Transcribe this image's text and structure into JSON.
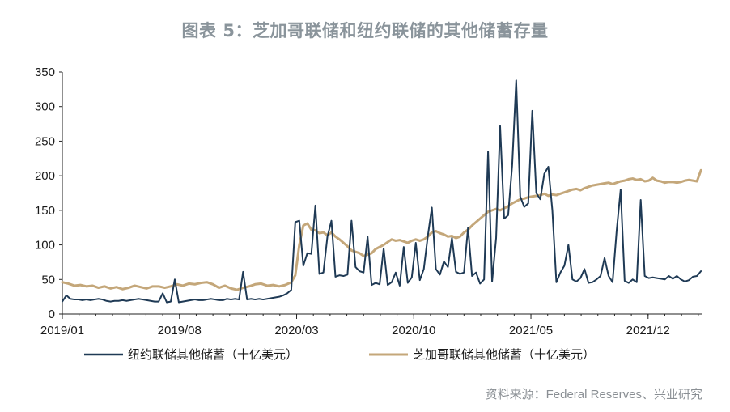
{
  "chart_data": {
    "type": "line",
    "title": "图表 5：芝加哥联储和纽约联储的其他储蓄存量",
    "source": "资料来源：Federal Reserves、兴业研究",
    "xlabel": "",
    "ylabel": "",
    "ylim": [
      0,
      350
    ],
    "yticks": [
      0,
      50,
      100,
      150,
      200,
      250,
      300,
      350
    ],
    "xtick_labels": [
      "2019/01",
      "2019/08",
      "2020/03",
      "2020/10",
      "2021/05",
      "2021/12"
    ],
    "x_start": "2019-01",
    "x_end": "2022-03",
    "grid": false,
    "legend_position": "bottom",
    "colors": {
      "ny": "#1f3a55",
      "chicago": "#c4a77a",
      "axis": "#222222",
      "title": "#8a949b",
      "source": "#8a8f94"
    },
    "series": [
      {
        "name": "纽约联储其他储蓄（十亿美元）",
        "color": "#1f3a55",
        "points": [
          [
            2019.0,
            18
          ],
          [
            2019.02,
            27
          ],
          [
            2019.04,
            22
          ],
          [
            2019.06,
            21
          ],
          [
            2019.08,
            21
          ],
          [
            2019.1,
            20
          ],
          [
            2019.12,
            21
          ],
          [
            2019.14,
            20
          ],
          [
            2019.16,
            21
          ],
          [
            2019.18,
            22
          ],
          [
            2019.2,
            21
          ],
          [
            2019.22,
            19
          ],
          [
            2019.24,
            18
          ],
          [
            2019.26,
            19
          ],
          [
            2019.28,
            19
          ],
          [
            2019.3,
            20
          ],
          [
            2019.32,
            19
          ],
          [
            2019.34,
            20
          ],
          [
            2019.36,
            21
          ],
          [
            2019.38,
            22
          ],
          [
            2019.4,
            21
          ],
          [
            2019.42,
            20
          ],
          [
            2019.44,
            19
          ],
          [
            2019.46,
            18
          ],
          [
            2019.48,
            18
          ],
          [
            2019.5,
            30
          ],
          [
            2019.52,
            17
          ],
          [
            2019.54,
            18
          ],
          [
            2019.56,
            50
          ],
          [
            2019.58,
            17
          ],
          [
            2019.6,
            18
          ],
          [
            2019.62,
            19
          ],
          [
            2019.64,
            20
          ],
          [
            2019.66,
            21
          ],
          [
            2019.68,
            20
          ],
          [
            2019.7,
            20
          ],
          [
            2019.72,
            21
          ],
          [
            2019.74,
            22
          ],
          [
            2019.76,
            21
          ],
          [
            2019.78,
            20
          ],
          [
            2019.8,
            20
          ],
          [
            2019.82,
            22
          ],
          [
            2019.84,
            21
          ],
          [
            2019.86,
            22
          ],
          [
            2019.88,
            21
          ],
          [
            2019.9,
            61
          ],
          [
            2019.92,
            21
          ],
          [
            2019.94,
            22
          ],
          [
            2019.96,
            21
          ],
          [
            2019.98,
            22
          ],
          [
            2020.0,
            21
          ],
          [
            2020.02,
            22
          ],
          [
            2020.04,
            23
          ],
          [
            2020.06,
            24
          ],
          [
            2020.08,
            25
          ],
          [
            2020.1,
            27
          ],
          [
            2020.12,
            30
          ],
          [
            2020.14,
            35
          ],
          [
            2020.16,
            133
          ],
          [
            2020.18,
            135
          ],
          [
            2020.2,
            70
          ],
          [
            2020.22,
            88
          ],
          [
            2020.24,
            87
          ],
          [
            2020.26,
            157
          ],
          [
            2020.28,
            58
          ],
          [
            2020.3,
            60
          ],
          [
            2020.32,
            112
          ],
          [
            2020.34,
            135
          ],
          [
            2020.36,
            54
          ],
          [
            2020.38,
            56
          ],
          [
            2020.4,
            55
          ],
          [
            2020.42,
            57
          ],
          [
            2020.44,
            135
          ],
          [
            2020.46,
            68
          ],
          [
            2020.48,
            62
          ],
          [
            2020.5,
            60
          ],
          [
            2020.52,
            112
          ],
          [
            2020.54,
            42
          ],
          [
            2020.56,
            45
          ],
          [
            2020.58,
            43
          ],
          [
            2020.6,
            95
          ],
          [
            2020.62,
            42
          ],
          [
            2020.64,
            46
          ],
          [
            2020.66,
            60
          ],
          [
            2020.68,
            41
          ],
          [
            2020.7,
            97
          ],
          [
            2020.72,
            45
          ],
          [
            2020.74,
            53
          ],
          [
            2020.76,
            103
          ],
          [
            2020.78,
            49
          ],
          [
            2020.8,
            65
          ],
          [
            2020.82,
            113
          ],
          [
            2020.84,
            154
          ],
          [
            2020.86,
            65
          ],
          [
            2020.88,
            57
          ],
          [
            2020.9,
            76
          ],
          [
            2020.92,
            68
          ],
          [
            2020.94,
            110
          ],
          [
            2020.96,
            61
          ],
          [
            2020.98,
            58
          ],
          [
            2021.0,
            60
          ],
          [
            2021.02,
            125
          ],
          [
            2021.04,
            55
          ],
          [
            2021.06,
            60
          ],
          [
            2021.08,
            44
          ],
          [
            2021.1,
            50
          ],
          [
            2021.12,
            235
          ],
          [
            2021.14,
            47
          ],
          [
            2021.16,
            110
          ],
          [
            2021.18,
            272
          ],
          [
            2021.2,
            138
          ],
          [
            2021.22,
            143
          ],
          [
            2021.24,
            215
          ],
          [
            2021.26,
            338
          ],
          [
            2021.28,
            170
          ],
          [
            2021.3,
            155
          ],
          [
            2021.32,
            160
          ],
          [
            2021.34,
            294
          ],
          [
            2021.36,
            175
          ],
          [
            2021.38,
            166
          ],
          [
            2021.4,
            203
          ],
          [
            2021.42,
            213
          ],
          [
            2021.44,
            150
          ],
          [
            2021.46,
            46
          ],
          [
            2021.48,
            60
          ],
          [
            2021.5,
            70
          ],
          [
            2021.52,
            100
          ],
          [
            2021.54,
            50
          ],
          [
            2021.56,
            47
          ],
          [
            2021.58,
            52
          ],
          [
            2021.6,
            65
          ],
          [
            2021.62,
            45
          ],
          [
            2021.64,
            46
          ],
          [
            2021.66,
            50
          ],
          [
            2021.68,
            55
          ],
          [
            2021.7,
            81
          ],
          [
            2021.72,
            55
          ],
          [
            2021.74,
            46
          ],
          [
            2021.76,
            120
          ],
          [
            2021.78,
            180
          ],
          [
            2021.8,
            48
          ],
          [
            2021.82,
            45
          ],
          [
            2021.84,
            50
          ],
          [
            2021.86,
            46
          ],
          [
            2021.88,
            165
          ],
          [
            2021.9,
            55
          ],
          [
            2021.92,
            52
          ],
          [
            2021.94,
            53
          ],
          [
            2021.96,
            52
          ],
          [
            2021.98,
            51
          ],
          [
            2022.0,
            50
          ],
          [
            2022.02,
            55
          ],
          [
            2022.04,
            51
          ],
          [
            2022.06,
            55
          ],
          [
            2022.08,
            50
          ],
          [
            2022.1,
            47
          ],
          [
            2022.12,
            49
          ],
          [
            2022.14,
            54
          ],
          [
            2022.16,
            55
          ],
          [
            2022.18,
            62
          ]
        ]
      },
      {
        "name": "芝加哥联储其他储蓄（十亿美元）",
        "color": "#c4a77a",
        "points": [
          [
            2019.0,
            46
          ],
          [
            2019.03,
            44
          ],
          [
            2019.06,
            41
          ],
          [
            2019.09,
            42
          ],
          [
            2019.12,
            40
          ],
          [
            2019.15,
            41
          ],
          [
            2019.18,
            38
          ],
          [
            2019.21,
            40
          ],
          [
            2019.24,
            37
          ],
          [
            2019.27,
            39
          ],
          [
            2019.3,
            36
          ],
          [
            2019.33,
            38
          ],
          [
            2019.36,
            41
          ],
          [
            2019.39,
            39
          ],
          [
            2019.42,
            37
          ],
          [
            2019.45,
            40
          ],
          [
            2019.48,
            40
          ],
          [
            2019.51,
            38
          ],
          [
            2019.54,
            40
          ],
          [
            2019.57,
            43
          ],
          [
            2019.6,
            41
          ],
          [
            2019.63,
            44
          ],
          [
            2019.66,
            43
          ],
          [
            2019.69,
            45
          ],
          [
            2019.72,
            46
          ],
          [
            2019.75,
            43
          ],
          [
            2019.78,
            38
          ],
          [
            2019.81,
            41
          ],
          [
            2019.84,
            37
          ],
          [
            2019.87,
            35
          ],
          [
            2019.9,
            38
          ],
          [
            2019.93,
            40
          ],
          [
            2019.96,
            43
          ],
          [
            2019.99,
            44
          ],
          [
            2020.02,
            41
          ],
          [
            2020.05,
            42
          ],
          [
            2020.08,
            40
          ],
          [
            2020.11,
            42
          ],
          [
            2020.14,
            46
          ],
          [
            2020.16,
            56
          ],
          [
            2020.18,
            100
          ],
          [
            2020.2,
            128
          ],
          [
            2020.22,
            131
          ],
          [
            2020.24,
            122
          ],
          [
            2020.26,
            121
          ],
          [
            2020.28,
            117
          ],
          [
            2020.3,
            118
          ],
          [
            2020.32,
            114
          ],
          [
            2020.34,
            118
          ],
          [
            2020.36,
            112
          ],
          [
            2020.38,
            108
          ],
          [
            2020.4,
            103
          ],
          [
            2020.42,
            98
          ],
          [
            2020.44,
            92
          ],
          [
            2020.46,
            90
          ],
          [
            2020.48,
            88
          ],
          [
            2020.5,
            84
          ],
          [
            2020.52,
            86
          ],
          [
            2020.54,
            88
          ],
          [
            2020.56,
            94
          ],
          [
            2020.58,
            97
          ],
          [
            2020.6,
            100
          ],
          [
            2020.62,
            104
          ],
          [
            2020.64,
            108
          ],
          [
            2020.66,
            106
          ],
          [
            2020.68,
            107
          ],
          [
            2020.7,
            105
          ],
          [
            2020.72,
            103
          ],
          [
            2020.74,
            106
          ],
          [
            2020.76,
            108
          ],
          [
            2020.78,
            106
          ],
          [
            2020.8,
            108
          ],
          [
            2020.82,
            112
          ],
          [
            2020.84,
            118
          ],
          [
            2020.86,
            120
          ],
          [
            2020.88,
            117
          ],
          [
            2020.9,
            115
          ],
          [
            2020.92,
            112
          ],
          [
            2020.94,
            113
          ],
          [
            2020.96,
            110
          ],
          [
            2020.98,
            112
          ],
          [
            2021.0,
            118
          ],
          [
            2021.02,
            122
          ],
          [
            2021.04,
            128
          ],
          [
            2021.06,
            133
          ],
          [
            2021.08,
            138
          ],
          [
            2021.1,
            143
          ],
          [
            2021.12,
            148
          ],
          [
            2021.14,
            150
          ],
          [
            2021.16,
            152
          ],
          [
            2021.18,
            150
          ],
          [
            2021.2,
            153
          ],
          [
            2021.22,
            156
          ],
          [
            2021.24,
            160
          ],
          [
            2021.26,
            163
          ],
          [
            2021.28,
            166
          ],
          [
            2021.3,
            167
          ],
          [
            2021.32,
            169
          ],
          [
            2021.34,
            170
          ],
          [
            2021.36,
            171
          ],
          [
            2021.38,
            172
          ],
          [
            2021.4,
            174
          ],
          [
            2021.42,
            171
          ],
          [
            2021.44,
            173
          ],
          [
            2021.46,
            172
          ],
          [
            2021.48,
            174
          ],
          [
            2021.5,
            176
          ],
          [
            2021.52,
            178
          ],
          [
            2021.54,
            180
          ],
          [
            2021.56,
            181
          ],
          [
            2021.58,
            179
          ],
          [
            2021.6,
            182
          ],
          [
            2021.62,
            184
          ],
          [
            2021.64,
            186
          ],
          [
            2021.66,
            187
          ],
          [
            2021.68,
            188
          ],
          [
            2021.7,
            189
          ],
          [
            2021.72,
            190
          ],
          [
            2021.74,
            188
          ],
          [
            2021.76,
            190
          ],
          [
            2021.78,
            192
          ],
          [
            2021.8,
            193
          ],
          [
            2021.82,
            195
          ],
          [
            2021.84,
            196
          ],
          [
            2021.86,
            194
          ],
          [
            2021.88,
            195
          ],
          [
            2021.9,
            192
          ],
          [
            2021.92,
            193
          ],
          [
            2021.94,
            197
          ],
          [
            2021.96,
            193
          ],
          [
            2021.98,
            192
          ],
          [
            2022.0,
            190
          ],
          [
            2022.02,
            191
          ],
          [
            2022.04,
            191
          ],
          [
            2022.06,
            190
          ],
          [
            2022.08,
            191
          ],
          [
            2022.1,
            193
          ],
          [
            2022.12,
            194
          ],
          [
            2022.14,
            193
          ],
          [
            2022.16,
            192
          ],
          [
            2022.18,
            208
          ]
        ]
      }
    ]
  }
}
